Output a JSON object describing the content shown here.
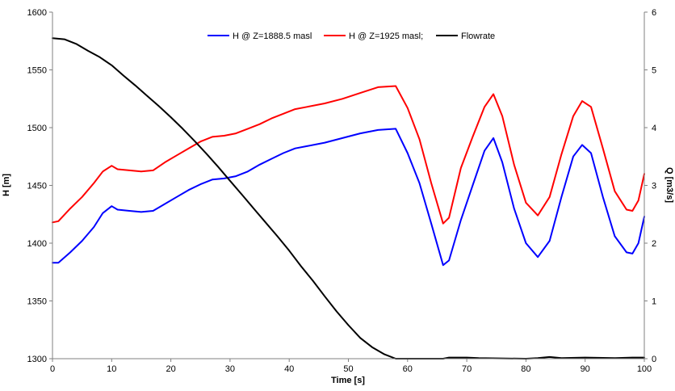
{
  "chart_data": {
    "type": "line",
    "xlabel": "Time [s]",
    "ylabel": "H [m]",
    "y2label": "Q [m3/s]",
    "xlim": [
      0,
      100
    ],
    "ylim": [
      1300,
      1600
    ],
    "y2lim": [
      0,
      6
    ],
    "x_ticks": [
      "0",
      "10",
      "20",
      "30",
      "40",
      "50",
      "60",
      "70",
      "80",
      "90",
      "100"
    ],
    "y_ticks": [
      "1300",
      "1350",
      "1400",
      "1450",
      "1500",
      "1550",
      "1600"
    ],
    "y2_ticks": [
      "0",
      "1",
      "2",
      "3",
      "4",
      "5",
      "6"
    ],
    "grid": false,
    "legend_position": "top-center",
    "series": [
      {
        "name": "H @ Z=1888.5 masl",
        "axis": "left",
        "color": "#0000ff",
        "points": [
          [
            0,
            1383
          ],
          [
            1,
            1383
          ],
          [
            3,
            1392
          ],
          [
            5,
            1402
          ],
          [
            7,
            1414
          ],
          [
            8.5,
            1426
          ],
          [
            10,
            1432
          ],
          [
            11,
            1429
          ],
          [
            13,
            1428
          ],
          [
            15,
            1427
          ],
          [
            17,
            1428
          ],
          [
            19,
            1434
          ],
          [
            21,
            1440
          ],
          [
            23,
            1446
          ],
          [
            25,
            1451
          ],
          [
            27,
            1455
          ],
          [
            29,
            1456
          ],
          [
            31,
            1458
          ],
          [
            33,
            1462
          ],
          [
            35,
            1468
          ],
          [
            37,
            1473
          ],
          [
            39,
            1478
          ],
          [
            41,
            1482
          ],
          [
            43,
            1484
          ],
          [
            46,
            1487
          ],
          [
            49,
            1491
          ],
          [
            52,
            1495
          ],
          [
            55,
            1498
          ],
          [
            58,
            1499
          ],
          [
            60,
            1478
          ],
          [
            62,
            1452
          ],
          [
            64,
            1417
          ],
          [
            66,
            1381
          ],
          [
            67,
            1385
          ],
          [
            69,
            1420
          ],
          [
            71,
            1450
          ],
          [
            73,
            1480
          ],
          [
            74.5,
            1491
          ],
          [
            76,
            1470
          ],
          [
            78,
            1430
          ],
          [
            80,
            1400
          ],
          [
            82,
            1388
          ],
          [
            84,
            1402
          ],
          [
            86,
            1440
          ],
          [
            88,
            1475
          ],
          [
            89.5,
            1485
          ],
          [
            91,
            1478
          ],
          [
            93,
            1440
          ],
          [
            95,
            1406
          ],
          [
            97,
            1392
          ],
          [
            98,
            1391
          ],
          [
            99,
            1400
          ],
          [
            100,
            1423
          ]
        ]
      },
      {
        "name": "H @ Z=1925 masl;",
        "axis": "left",
        "color": "#ff0000",
        "points": [
          [
            0,
            1418
          ],
          [
            1,
            1419
          ],
          [
            3,
            1430
          ],
          [
            5,
            1440
          ],
          [
            7,
            1452
          ],
          [
            8.5,
            1462
          ],
          [
            10,
            1467
          ],
          [
            11,
            1464
          ],
          [
            13,
            1463
          ],
          [
            15,
            1462
          ],
          [
            17,
            1463
          ],
          [
            19,
            1470
          ],
          [
            21,
            1476
          ],
          [
            23,
            1482
          ],
          [
            25,
            1488
          ],
          [
            27,
            1492
          ],
          [
            29,
            1493
          ],
          [
            31,
            1495
          ],
          [
            33,
            1499
          ],
          [
            35,
            1503
          ],
          [
            37,
            1508
          ],
          [
            39,
            1512
          ],
          [
            41,
            1516
          ],
          [
            43,
            1518
          ],
          [
            46,
            1521
          ],
          [
            49,
            1525
          ],
          [
            52,
            1530
          ],
          [
            55,
            1535
          ],
          [
            58,
            1536
          ],
          [
            60,
            1517
          ],
          [
            62,
            1490
          ],
          [
            64,
            1452
          ],
          [
            66,
            1417
          ],
          [
            67,
            1422
          ],
          [
            69,
            1465
          ],
          [
            71,
            1492
          ],
          [
            73,
            1518
          ],
          [
            74.5,
            1529
          ],
          [
            76,
            1510
          ],
          [
            78,
            1468
          ],
          [
            80,
            1435
          ],
          [
            82,
            1424
          ],
          [
            84,
            1440
          ],
          [
            86,
            1477
          ],
          [
            88,
            1510
          ],
          [
            89.5,
            1523
          ],
          [
            91,
            1518
          ],
          [
            93,
            1482
          ],
          [
            95,
            1445
          ],
          [
            97,
            1429
          ],
          [
            98,
            1428
          ],
          [
            99,
            1437
          ],
          [
            100,
            1460
          ]
        ]
      },
      {
        "name": "Flowrate",
        "axis": "right",
        "color": "#000000",
        "points": [
          [
            0,
            5.55
          ],
          [
            2,
            5.53
          ],
          [
            4,
            5.45
          ],
          [
            6,
            5.33
          ],
          [
            8,
            5.22
          ],
          [
            10,
            5.08
          ],
          [
            12,
            4.9
          ],
          [
            14,
            4.73
          ],
          [
            16,
            4.55
          ],
          [
            18,
            4.37
          ],
          [
            20,
            4.18
          ],
          [
            22,
            3.98
          ],
          [
            24,
            3.77
          ],
          [
            26,
            3.55
          ],
          [
            28,
            3.32
          ],
          [
            30,
            3.08
          ],
          [
            32,
            2.84
          ],
          [
            34,
            2.6
          ],
          [
            36,
            2.36
          ],
          [
            38,
            2.12
          ],
          [
            40,
            1.87
          ],
          [
            42,
            1.6
          ],
          [
            44,
            1.35
          ],
          [
            46,
            1.08
          ],
          [
            48,
            0.82
          ],
          [
            50,
            0.58
          ],
          [
            52,
            0.36
          ],
          [
            54,
            0.2
          ],
          [
            56,
            0.08
          ],
          [
            58,
            0.0
          ],
          [
            66,
            0.0
          ],
          [
            67,
            0.02
          ],
          [
            70,
            0.02
          ],
          [
            72,
            0.01
          ],
          [
            80,
            0.0
          ],
          [
            82,
            0.01
          ],
          [
            84,
            0.03
          ],
          [
            86,
            0.01
          ],
          [
            90,
            0.02
          ],
          [
            95,
            0.01
          ],
          [
            98,
            0.02
          ],
          [
            100,
            0.02
          ]
        ]
      }
    ]
  }
}
